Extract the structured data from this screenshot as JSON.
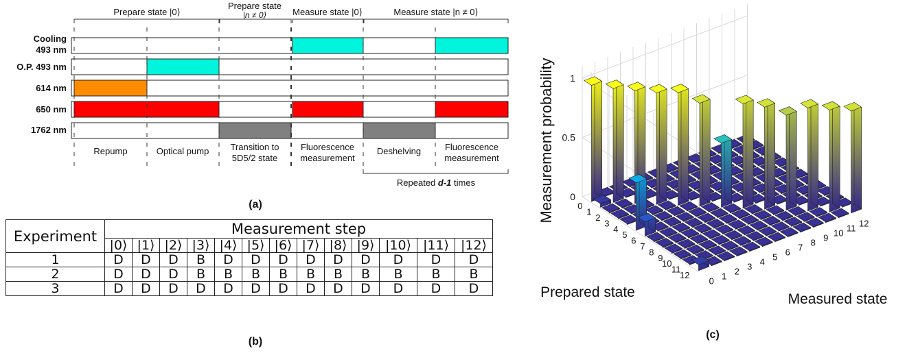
{
  "panel_a": {
    "phases": [
      {
        "label": "Prepare state |0⟩"
      },
      {
        "label": "Prepare state",
        "label2": "|n ≠ 0⟩"
      },
      {
        "label": "Measure state |0⟩"
      },
      {
        "label": "Measure state |n ≠ 0⟩"
      }
    ],
    "lasers": [
      {
        "line1": "Cooling",
        "line2": "493 nm"
      },
      {
        "line1": "O.P. 493 nm"
      },
      {
        "line1": "614 nm"
      },
      {
        "line1": "650 nm"
      },
      {
        "line1": "1762 nm"
      }
    ],
    "steps": [
      {
        "line1": "Repump"
      },
      {
        "line1": "Optical pump"
      },
      {
        "line1": "Transition to",
        "line2": "5D5/2 state"
      },
      {
        "line1": "Fluorescence",
        "line2": "measurement"
      },
      {
        "line1": "Deshelving"
      },
      {
        "line1": "Fluorescence",
        "line2": "measurement"
      }
    ],
    "repeat_prefix": "Repeated ",
    "repeat_var": "d-1",
    "repeat_suffix": " times",
    "caption": "(a)",
    "colors": {
      "cooling": "#00f5dc",
      "orange": "#ff8c00",
      "red": "#ff0000",
      "gray": "#808080"
    }
  },
  "panel_b": {
    "header_experiment": "Experiment",
    "header_step": "Measurement step",
    "kets": [
      "|0⟩",
      "|1⟩",
      "|2⟩",
      "|3⟩",
      "|4⟩",
      "|5⟩",
      "|6⟩",
      "|7⟩",
      "|8⟩",
      "|9⟩",
      "|10⟩",
      "|11⟩",
      "|12⟩"
    ],
    "rows": [
      {
        "exp": "1",
        "vals": [
          "D",
          "D",
          "D",
          "B",
          "D",
          "D",
          "D",
          "D",
          "D",
          "D",
          "D",
          "D",
          "D"
        ]
      },
      {
        "exp": "2",
        "vals": [
          "D",
          "D",
          "D",
          "B",
          "B",
          "B",
          "B",
          "B",
          "B",
          "B",
          "B",
          "B",
          "B"
        ]
      },
      {
        "exp": "3",
        "vals": [
          "D",
          "D",
          "D",
          "D",
          "D",
          "D",
          "D",
          "D",
          "D",
          "D",
          "D",
          "D",
          "D"
        ]
      }
    ],
    "caption": "(b)"
  },
  "chart_data": {
    "type": "bar3d",
    "title": "",
    "zlabel": "Measurement probability",
    "ylabel": "Prepared state",
    "xlabel": "Measured state",
    "x_ticks": [
      "0",
      "1",
      "2",
      "3",
      "4",
      "5",
      "6",
      "7",
      "8",
      "9",
      "10",
      "11",
      "12"
    ],
    "y_ticks": [
      "0",
      "1",
      "2",
      "3",
      "4",
      "5",
      "6",
      "7",
      "8",
      "9",
      "10",
      "11",
      "12"
    ],
    "z_ticks": [
      "0",
      "0.5",
      "1"
    ],
    "zlim": [
      0,
      1
    ],
    "diagonal_probabilities": [
      0.98,
      0.96,
      0.95,
      0.94,
      0.95,
      0.87,
      0.54,
      0.88,
      0.86,
      0.8,
      0.87,
      0.86,
      0.86
    ],
    "off_diagonal_visible": [
      {
        "prepared": 5,
        "measured": 0,
        "p": 0.4
      },
      {
        "prepared": 6,
        "measured": 0,
        "p": 0.12
      },
      {
        "prepared": 1,
        "measured": 0,
        "p": 0.03
      },
      {
        "prepared": 12,
        "measured": 0,
        "p": 0.05
      }
    ],
    "caption": "(c)"
  }
}
